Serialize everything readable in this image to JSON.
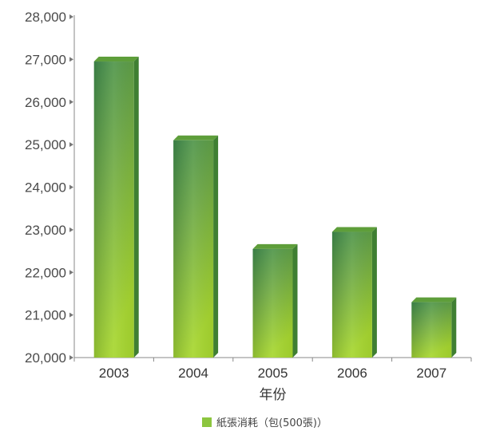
{
  "chart_data": {
    "type": "bar",
    "categories": [
      "2003",
      "2004",
      "2005",
      "2006",
      "2007"
    ],
    "series": [
      {
        "name": "紙張消耗（包(500張)）",
        "values": [
          26950,
          25100,
          22550,
          22950,
          21300
        ]
      }
    ],
    "xlabel": "年份",
    "ylabel": "",
    "ylim": [
      20000,
      28000
    ],
    "yticks": [
      20000,
      21000,
      22000,
      23000,
      24000,
      25000,
      26000,
      27000,
      28000
    ],
    "ytick_labels": [
      "20,000",
      "21,000",
      "22,000",
      "23,000",
      "24,000",
      "25,000",
      "26,000",
      "27,000",
      "28,000"
    ],
    "grid": false,
    "legend_position": "bottom",
    "colors": {
      "bar_dark": "#4f9a4a",
      "bar_light": "#9fd03a",
      "bar_top": "#5e9e3a",
      "bar_side": "#3f7f32",
      "axis": "#888888",
      "legend_swatch": "#8cc63f"
    }
  }
}
